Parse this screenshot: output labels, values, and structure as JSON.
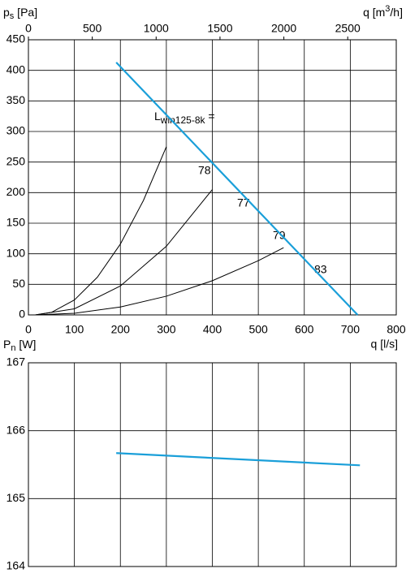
{
  "chart_data": [
    {
      "type": "line",
      "ylabel": {
        "main": "p",
        "sub": "s",
        "unit": " [Pa]"
      },
      "x2label": {
        "main": "q [m",
        "sup": "3",
        "unit": "/h]"
      },
      "xlim": [
        0,
        800
      ],
      "xticks": [
        0,
        100,
        200,
        300,
        400,
        500,
        600,
        700,
        800
      ],
      "ylim": [
        0,
        450
      ],
      "yticks": [
        0,
        50,
        100,
        150,
        200,
        250,
        300,
        350,
        400,
        450
      ],
      "x2lim": [
        0,
        2880
      ],
      "x2ticks": [
        0,
        500,
        1000,
        1500,
        2000,
        2500
      ],
      "grid": true,
      "series": [
        {
          "color": "#1a9fd9",
          "x": [
            191,
            716
          ],
          "values": [
            413,
            0
          ]
        },
        {
          "color": "#000000",
          "x": [
            15,
            50,
            100,
            150,
            200,
            250,
            300
          ],
          "values": [
            0,
            4.1,
            24.5,
            61.7,
            115.9,
            187.0,
            275
          ]
        },
        {
          "color": "#000000",
          "x": [
            15,
            100,
            200,
            300,
            400
          ],
          "values": [
            0,
            10.0,
            47.3,
            112.3,
            205
          ]
        },
        {
          "color": "#000000",
          "x": [
            15,
            100,
            200,
            300,
            400,
            500,
            555
          ],
          "values": [
            0,
            2.7,
            12.9,
            30.6,
            55.9,
            88.7,
            110
          ]
        }
      ],
      "legend_label": {
        "main": "L",
        "sub": "win125-8k",
        "tail": " ="
      },
      "annotations": [
        "78",
        "77",
        "79",
        "83"
      ]
    },
    {
      "type": "line",
      "ylabel": {
        "main": "P",
        "sub": "n",
        "unit": " [W]"
      },
      "xlabel": "q [l/s]",
      "xlim": [
        0,
        800
      ],
      "xticks": [
        0,
        100,
        200,
        300,
        400,
        500,
        600,
        700,
        800
      ],
      "ylim": [
        164,
        167
      ],
      "yticks": [
        164,
        165,
        166,
        167
      ],
      "grid": true,
      "series": [
        {
          "color": "#1a9fd9",
          "x": [
            191,
            721
          ],
          "values": [
            165.67,
            165.49
          ]
        }
      ]
    }
  ]
}
